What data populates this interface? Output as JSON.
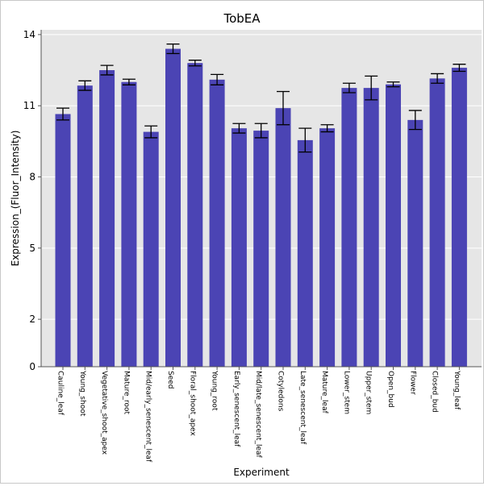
{
  "chart_data": {
    "type": "bar",
    "title": "TobEA",
    "xlabel": "Experiment",
    "ylabel": "Expression_(Fluor_Intensity)",
    "ylim": [
      0,
      14.2
    ],
    "yticks": [
      0,
      2,
      5,
      8,
      11,
      14
    ],
    "ytick_labels": [
      "0",
      "2",
      "5",
      "8",
      "11",
      "14"
    ],
    "grid": true,
    "bar_color": "#4b44b4",
    "plot_background": "#e6e6e6",
    "categories": [
      "Cauline_leaf",
      "Young_shoot",
      "Vegetative_shoot_apex",
      "Mature_root",
      "Mid/early_senescent_leaf",
      "Seed",
      "Floral_shoot_apex",
      "Young_root",
      "Early_senescent_leaf",
      "Mid/late_senescent_leaf",
      "Cotyledons",
      "Late_senescent_leaf",
      "Mature_leaf",
      "Lower_stem",
      "Upper_stem",
      "Open_bud",
      "Flower",
      "Closed_bud",
      "Young_leaf"
    ],
    "values": [
      10.65,
      11.85,
      12.5,
      12.0,
      9.9,
      13.4,
      12.8,
      12.1,
      10.05,
      9.95,
      10.9,
      9.55,
      10.05,
      11.75,
      11.75,
      11.9,
      10.4,
      12.15,
      12.6
    ],
    "errors": [
      0.25,
      0.2,
      0.2,
      0.12,
      0.25,
      0.2,
      0.12,
      0.22,
      0.2,
      0.3,
      0.7,
      0.5,
      0.15,
      0.2,
      0.5,
      0.1,
      0.4,
      0.2,
      0.15
    ]
  }
}
